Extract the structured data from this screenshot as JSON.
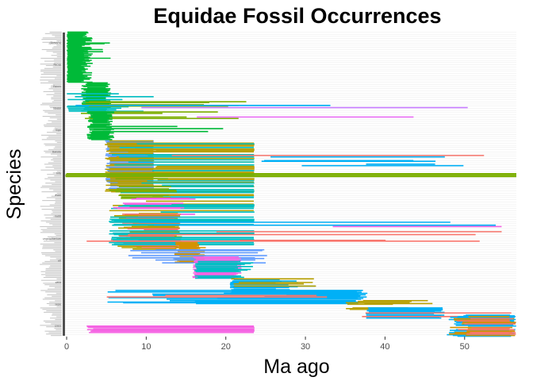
{
  "chart_data": {
    "type": "range",
    "title": "Equidae Fossil Occurrences",
    "xlabel": "Ma ago",
    "ylabel": "Species",
    "xlim": [
      -0.5,
      56.5
    ],
    "xticks": [
      0,
      10,
      20,
      30,
      40,
      50
    ],
    "x_tick_labels": [
      "0",
      "10",
      "20",
      "30",
      "40",
      "50"
    ],
    "grid": "horizontal-major",
    "legend": "none",
    "n_species": 420,
    "y_tick_labels_legible": [
      "(Grevy's)",
      "Pacup",
      "Equus",
      "Strobil",
      "Sign",
      "Dakota",
      "Info",
      "asan",
      "nadd",
      "ungolotherium",
      "atl",
      "seca",
      "sepe",
      "pseu"
    ],
    "palette": [
      "#00BA38",
      "#00B0F6",
      "#F8766D",
      "#B79F00",
      "#E76BF3",
      "#619CFF",
      "#00BFC4",
      "#7CAE00",
      "#C77CFF",
      "#F564E3",
      "#D39200",
      "#00C19A",
      "#FF61C3",
      "#93AA00",
      "#DB8E00"
    ],
    "segment_groups": [
      {
        "rows": [
          0,
          70
        ],
        "start": [
          0,
          0.2
        ],
        "end": [
          1.8,
          3.3
        ],
        "color": "#00BA38",
        "density": 1.0
      },
      {
        "rows": [
          10,
          40
        ],
        "start": [
          0,
          0.5
        ],
        "end": [
          4.5,
          6.0
        ],
        "color": "#00BA38",
        "density": 0.25
      },
      {
        "rows": [
          45,
          60
        ],
        "start": [
          0,
          0.3
        ],
        "end": [
          5.2,
          5.8
        ],
        "color": "#B79F00",
        "density": 0.12
      },
      {
        "rows": [
          70,
          110
        ],
        "start": [
          1.8,
          2.6
        ],
        "end": [
          4.8,
          5.6
        ],
        "color": "#00BA38",
        "density": 0.85
      },
      {
        "rows": [
          85,
          112
        ],
        "start": [
          0,
          1.5
        ],
        "end": [
          5.5,
          11
        ],
        "color": "#00BFC4",
        "density": 0.25
      },
      {
        "rows": [
          95,
          120
        ],
        "start": [
          1.5,
          3.0
        ],
        "end": [
          12,
          23.5
        ],
        "color": "#7CAE00",
        "density": 0.35
      },
      {
        "rows": [
          98,
          108
        ],
        "start": [
          1.0,
          4.0
        ],
        "end": [
          23,
          56.5
        ],
        "color": "#00B0F6",
        "density": 0.2
      },
      {
        "rows": [
          100,
          110
        ],
        "start": [
          3.0,
          15
        ],
        "end": [
          20,
          56
        ],
        "color": "#C77CFF",
        "density": 0.15
      },
      {
        "rows": [
          110,
          150
        ],
        "start": [
          2.5,
          3.4
        ],
        "end": [
          5.0,
          6.0
        ],
        "color": "#00BA38",
        "density": 0.9
      },
      {
        "rows": [
          112,
          140
        ],
        "start": [
          0.3,
          5.0
        ],
        "end": [
          12,
          23.5
        ],
        "color": "#00BA38",
        "density": 0.4
      },
      {
        "rows": [
          115,
          125
        ],
        "start": [
          2.8,
          20
        ],
        "end": [
          31.5,
          49
        ],
        "color": "#E76BF3",
        "density": 0.15
      },
      {
        "rows": [
          150,
          220
        ],
        "start": [
          4.8,
          5.5
        ],
        "end": [
          10.8,
          11.0
        ],
        "color": "#619CFF",
        "density": 0.7
      },
      {
        "rows": [
          150,
          220
        ],
        "start": [
          4.8,
          5.5
        ],
        "end": [
          10.8,
          11.0
        ],
        "color": "#B79F00",
        "density": 0.4
      },
      {
        "rows": [
          150,
          250
        ],
        "start": [
          5.0,
          12
        ],
        "end": [
          23.5,
          23.6
        ],
        "color": "#B79F00",
        "density": 0.35
      },
      {
        "rows": [
          150,
          250
        ],
        "start": [
          5.0,
          12
        ],
        "end": [
          23.5,
          23.6
        ],
        "color": "#00BFC4",
        "density": 0.3
      },
      {
        "rows": [
          170,
          185
        ],
        "start": [
          20,
          38
        ],
        "end": [
          37.5,
          56.5
        ],
        "color": "#00B0F6",
        "density": 0.2
      },
      {
        "rows": [
          168,
          178
        ],
        "start": [
          12,
          40
        ],
        "end": [
          42,
          56.5
        ],
        "color": "#F8766D",
        "density": 0.15
      },
      {
        "rows": [
          195,
          200
        ],
        "start": [
          -0.2,
          0.0
        ],
        "end": [
          56.5,
          56.5
        ],
        "color": "#7CAE00",
        "density": 0.6
      },
      {
        "rows": [
          200,
          230
        ],
        "start": [
          5.2,
          7.0
        ],
        "end": [
          12,
          14
        ],
        "color": "#7CAE00",
        "density": 0.4
      },
      {
        "rows": [
          225,
          255
        ],
        "start": [
          5.0,
          9.0
        ],
        "end": [
          13,
          16.3
        ],
        "color": "#F564E3",
        "density": 0.25
      },
      {
        "rows": [
          250,
          300
        ],
        "start": [
          5.5,
          10.2
        ],
        "end": [
          13.5,
          14.5
        ],
        "color": "#B79F00",
        "density": 0.8
      },
      {
        "rows": [
          250,
          300
        ],
        "start": [
          5.5,
          10.2
        ],
        "end": [
          13.5,
          14.5
        ],
        "color": "#F8766D",
        "density": 0.4
      },
      {
        "rows": [
          255,
          295
        ],
        "start": [
          5.2,
          6.0
        ],
        "end": [
          23.5,
          23.6
        ],
        "color": "#00BFC4",
        "density": 0.35
      },
      {
        "rows": [
          260,
          275
        ],
        "start": [
          0.0,
          23
        ],
        "end": [
          30,
          56.5
        ],
        "color": "#00B0F6",
        "density": 0.25
      },
      {
        "rows": [
          262,
          272
        ],
        "start": [
          23,
          40
        ],
        "end": [
          45,
          56.5
        ],
        "color": "#F564E3",
        "density": 0.2
      },
      {
        "rows": [
          275,
          290
        ],
        "start": [
          0.0,
          30
        ],
        "end": [
          40,
          56.5
        ],
        "color": "#F8766D",
        "density": 0.18
      },
      {
        "rows": [
          290,
          320
        ],
        "start": [
          13.5,
          14.2
        ],
        "end": [
          16.3,
          17.5
        ],
        "color": "#D39200",
        "density": 0.8
      },
      {
        "rows": [
          300,
          320
        ],
        "start": [
          5.5,
          14.0
        ],
        "end": [
          23.5,
          25.5
        ],
        "color": "#619CFF",
        "density": 0.35
      },
      {
        "rows": [
          310,
          340
        ],
        "start": [
          15.8,
          16.4
        ],
        "end": [
          21.0,
          22.0
        ],
        "color": "#F564E3",
        "density": 0.7
      },
      {
        "rows": [
          315,
          340
        ],
        "start": [
          16.0,
          16.5
        ],
        "end": [
          21.0,
          23.5
        ],
        "color": "#00BFC4",
        "density": 0.4
      },
      {
        "rows": [
          340,
          360
        ],
        "start": [
          20.5,
          21.0
        ],
        "end": [
          26,
          31.5
        ],
        "color": "#00B0F6",
        "density": 0.8
      },
      {
        "rows": [
          340,
          360
        ],
        "start": [
          20.5,
          22.0
        ],
        "end": [
          29,
          31.5
        ],
        "color": "#B79F00",
        "density": 0.35
      },
      {
        "rows": [
          355,
          375
        ],
        "start": [
          5.0,
          31.0
        ],
        "end": [
          36,
          37.8
        ],
        "color": "#00B0F6",
        "density": 0.8
      },
      {
        "rows": [
          362,
          376
        ],
        "start": [
          0.0,
          20.5
        ],
        "end": [
          31,
          34.0
        ],
        "color": "#F8766D",
        "density": 0.2
      },
      {
        "rows": [
          370,
          385
        ],
        "start": [
          33.8,
          37.5
        ],
        "end": [
          40,
          46.5
        ],
        "color": "#B79F00",
        "density": 0.6
      },
      {
        "rows": [
          380,
          395
        ],
        "start": [
          37.5,
          38.0
        ],
        "end": [
          46,
          47.5
        ],
        "color": "#00B0F6",
        "density": 0.8
      },
      {
        "rows": [
          383,
          393
        ],
        "start": [
          37.0,
          38.0
        ],
        "end": [
          50.5,
          56.0
        ],
        "color": "#F8766D",
        "density": 0.4
      },
      {
        "rows": [
          390,
          420
        ],
        "start": [
          47.5,
          50.5
        ],
        "end": [
          55.5,
          56.5
        ],
        "color": "#00B0F6",
        "density": 0.8
      },
      {
        "rows": [
          392,
          420
        ],
        "start": [
          48.0,
          50.5
        ],
        "end": [
          55.5,
          56.5
        ],
        "color": "#D39200",
        "density": 0.5
      },
      {
        "rows": [
          395,
          420
        ],
        "start": [
          49.0,
          51.0
        ],
        "end": [
          55.5,
          56.5
        ],
        "color": "#F8766D",
        "density": 0.3
      },
      {
        "rows": [
          405,
          415
        ],
        "start": [
          2.5,
          3.5
        ],
        "end": [
          23.5,
          23.6
        ],
        "color": "#F564E3",
        "density": 0.25
      }
    ]
  }
}
